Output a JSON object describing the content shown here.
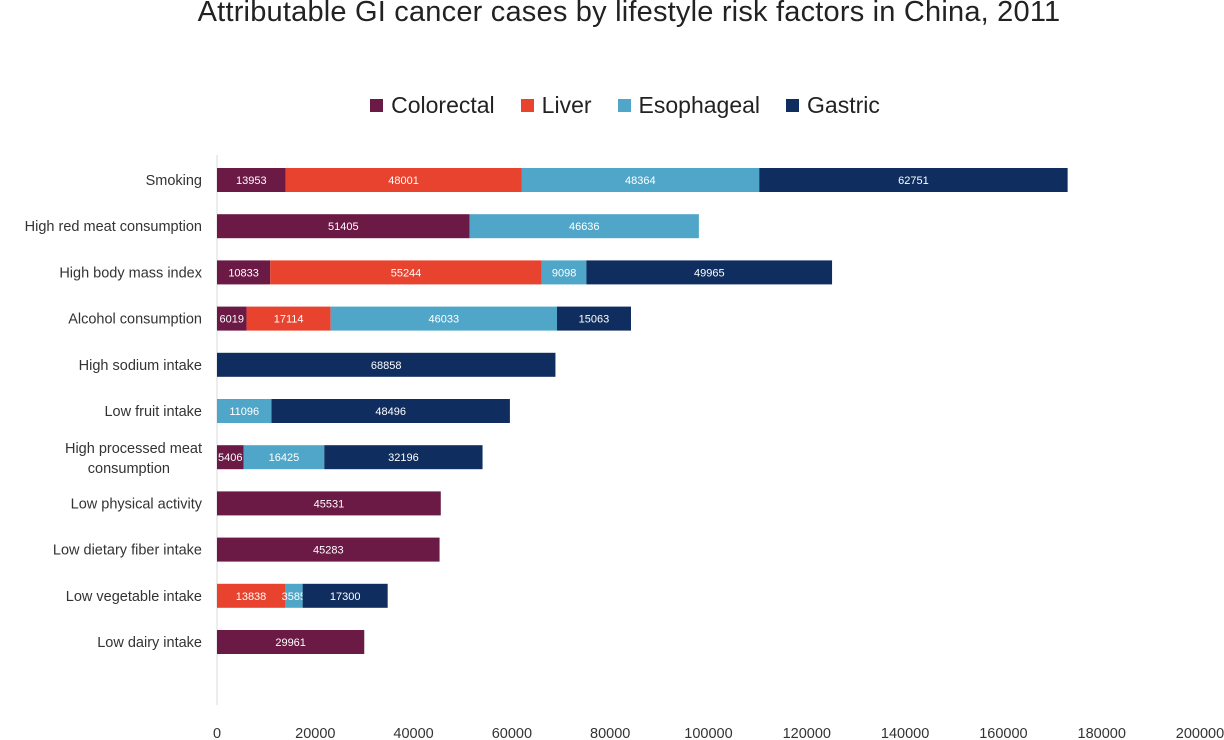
{
  "chart_data": {
    "type": "bar",
    "orientation": "horizontal",
    "stacked": true,
    "title": "Attributable GI cancer cases by lifestyle risk factors in China, 2011",
    "categories": [
      "Smoking",
      "High red meat consumption",
      "High body mass index",
      "Alcohol consumption",
      "High sodium intake",
      "Low fruit intake",
      "High processed meat consumption",
      "Low physical activity",
      "Low dietary fiber intake",
      "Low vegetable intake",
      "Low dairy intake"
    ],
    "series": [
      {
        "name": "Colorectal",
        "color": "#6b1a45",
        "values": [
          13953,
          51405,
          10833,
          6019,
          0,
          0,
          5406,
          45531,
          45283,
          0,
          29961
        ]
      },
      {
        "name": "Liver",
        "color": "#e8432f",
        "values": [
          48001,
          0,
          55244,
          17114,
          0,
          0,
          0,
          0,
          0,
          13838,
          0
        ]
      },
      {
        "name": "Esophageal",
        "color": "#4fa6c9",
        "values": [
          48364,
          46636,
          9098,
          46033,
          0,
          11096,
          16425,
          0,
          0,
          3585,
          0
        ]
      },
      {
        "name": "Gastric",
        "color": "#0f2d5e",
        "values": [
          62751,
          0,
          49965,
          15063,
          68858,
          48496,
          32196,
          0,
          0,
          17300,
          0
        ]
      }
    ],
    "xlim": [
      0,
      200000
    ],
    "xticks": [
      0,
      20000,
      40000,
      60000,
      80000,
      100000,
      120000,
      140000,
      160000,
      180000,
      200000
    ],
    "legend_position": "top",
    "grid": false
  }
}
